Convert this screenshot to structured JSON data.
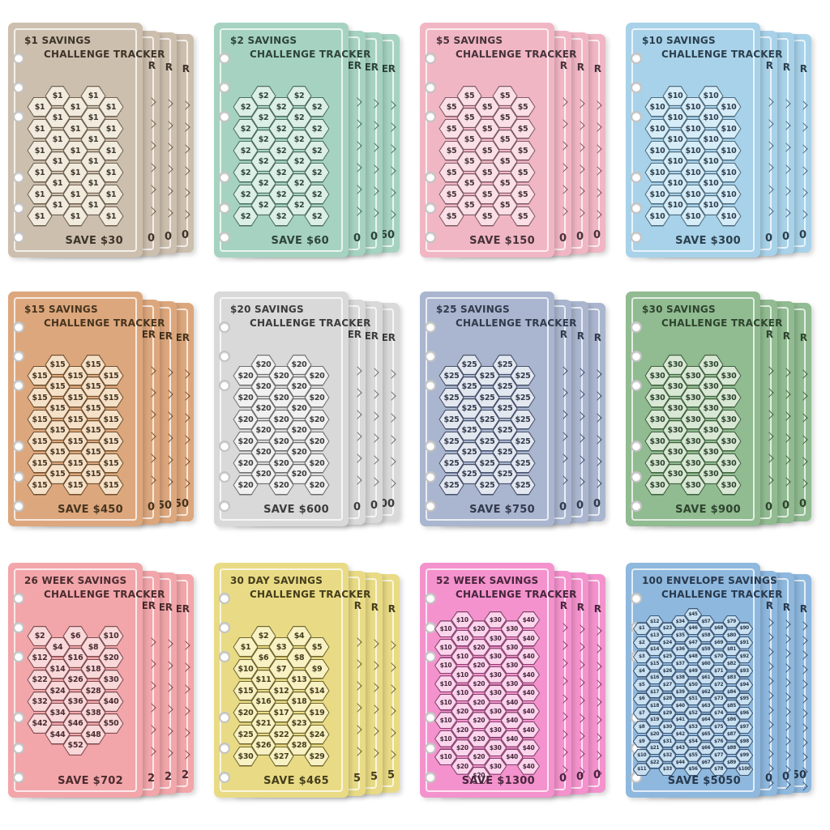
{
  "page": {
    "background": "#ffffff"
  },
  "cards": [
    {
      "title_line1": "$1 SAVINGS",
      "title_line2": "CHALLENGE TRACKER",
      "save_label": "SAVE $30",
      "colors": {
        "bg": "#cdbfae",
        "hex_fill": "#f1ebde",
        "hex_outline": "#6e6150",
        "text": "#3e352a"
      },
      "hex_size": "standard",
      "shifts": [
        1,
        0,
        1,
        0,
        1
      ],
      "columns": [
        [
          "$1",
          "$1",
          "$1",
          "$1",
          "$1",
          "$1"
        ],
        [
          "$1",
          "$1",
          "$1",
          "$1",
          "$1",
          "$1"
        ],
        [
          "$1",
          "$1",
          "$1",
          "$1",
          "$1",
          "$1"
        ],
        [
          "$1",
          "$1",
          "$1",
          "$1",
          "$1",
          "$1"
        ],
        [
          "$1",
          "$1",
          "$1",
          "$1",
          "$1",
          "$1"
        ]
      ],
      "edge_top_fragments": [
        "R",
        "R",
        "R"
      ],
      "edge_bottom_fragments": [
        "0",
        "0",
        "0"
      ]
    },
    {
      "title_line1": "$2 SAVINGS",
      "title_line2": "CHALLENGE TRACKER",
      "save_label": "SAVE $60",
      "colors": {
        "bg": "#a6d3c1",
        "hex_fill": "#dcefe6",
        "hex_outline": "#4c6e61",
        "text": "#2f443c"
      },
      "hex_size": "standard",
      "shifts": [
        1,
        0,
        1,
        0,
        1
      ],
      "columns": [
        [
          "$2",
          "$2",
          "$2",
          "$2",
          "$2",
          "$2"
        ],
        [
          "$2",
          "$2",
          "$2",
          "$2",
          "$2",
          "$2"
        ],
        [
          "$2",
          "$2",
          "$2",
          "$2",
          "$2",
          "$2"
        ],
        [
          "$2",
          "$2",
          "$2",
          "$2",
          "$2",
          "$2"
        ],
        [
          "$2",
          "$2",
          "$2",
          "$2",
          "$2",
          "$2"
        ]
      ],
      "edge_top_fragments": [
        "ER",
        "ER",
        "ER"
      ],
      "edge_bottom_fragments": [
        "0",
        "0",
        "60"
      ]
    },
    {
      "title_line1": "$5 SAVINGS",
      "title_line2": "CHALLENGE TRACKER",
      "save_label": "SAVE $150",
      "colors": {
        "bg": "#f1b6c4",
        "hex_fill": "#fadfe6",
        "hex_outline": "#7e5a64",
        "text": "#46333a"
      },
      "hex_size": "standard",
      "shifts": [
        1,
        0,
        1,
        0,
        1
      ],
      "columns": [
        [
          "$5",
          "$5",
          "$5",
          "$5",
          "$5",
          "$5"
        ],
        [
          "$5",
          "$5",
          "$5",
          "$5",
          "$5",
          "$5"
        ],
        [
          "$5",
          "$5",
          "$5",
          "$5",
          "$5",
          "$5"
        ],
        [
          "$5",
          "$5",
          "$5",
          "$5",
          "$5",
          "$5"
        ],
        [
          "$5",
          "$5",
          "$5",
          "$5",
          "$5",
          "$5"
        ]
      ],
      "edge_top_fragments": [
        "R",
        "R",
        "R"
      ],
      "edge_bottom_fragments": [
        "0",
        "0",
        "0"
      ]
    },
    {
      "title_line1": "$10 SAVINGS",
      "title_line2": "CHALLENGE TRACKER",
      "save_label": "SAVE $300",
      "colors": {
        "bg": "#a8d2e9",
        "hex_fill": "#d6ecf7",
        "hex_outline": "#4d6b7e",
        "text": "#2c3f4d"
      },
      "hex_size": "standard",
      "shifts": [
        1,
        0,
        1,
        0,
        1
      ],
      "columns": [
        [
          "$10",
          "$10",
          "$10",
          "$10",
          "$10",
          "$10"
        ],
        [
          "$10",
          "$10",
          "$10",
          "$10",
          "$10",
          "$10"
        ],
        [
          "$10",
          "$10",
          "$10",
          "$10",
          "$10",
          "$10"
        ],
        [
          "$10",
          "$10",
          "$10",
          "$10",
          "$10",
          "$10"
        ],
        [
          "$10",
          "$10",
          "$10",
          "$10",
          "$10",
          "$10"
        ]
      ],
      "edge_top_fragments": [
        "R",
        "R",
        "R"
      ],
      "edge_bottom_fragments": [
        "0",
        "0",
        "0"
      ]
    },
    {
      "title_line1": "$15 SAVINGS",
      "title_line2": "CHALLENGE TRACKER",
      "save_label": "SAVE $450",
      "colors": {
        "bg": "#dda77d",
        "hex_fill": "#f5e0c8",
        "hex_outline": "#70502f",
        "text": "#47351f"
      },
      "hex_size": "standard",
      "shifts": [
        1,
        0,
        1,
        0,
        1
      ],
      "columns": [
        [
          "$15",
          "$15",
          "$15",
          "$15",
          "$15",
          "$15"
        ],
        [
          "$15",
          "$15",
          "$15",
          "$15",
          "$15",
          "$15"
        ],
        [
          "$15",
          "$15",
          "$15",
          "$15",
          "$15",
          "$15"
        ],
        [
          "$15",
          "$15",
          "$15",
          "$15",
          "$15",
          "$15"
        ],
        [
          "$15",
          "$15",
          "$15",
          "$15",
          "$15",
          "$15"
        ]
      ],
      "edge_top_fragments": [
        "ER",
        "ER",
        "ER"
      ],
      "edge_bottom_fragments": [
        "0",
        "50",
        "50"
      ]
    },
    {
      "title_line1": "$20 SAVINGS",
      "title_line2": "CHALLENGE TRACKER",
      "save_label": "SAVE $600",
      "colors": {
        "bg": "#d9d9d9",
        "hex_fill": "#f1f1f1",
        "hex_outline": "#6f6f6f",
        "text": "#3c3c3c"
      },
      "hex_size": "standard",
      "shifts": [
        1,
        0,
        1,
        0,
        1
      ],
      "columns": [
        [
          "$20",
          "$20",
          "$20",
          "$20",
          "$20",
          "$20"
        ],
        [
          "$20",
          "$20",
          "$20",
          "$20",
          "$20",
          "$20"
        ],
        [
          "$20",
          "$20",
          "$20",
          "$20",
          "$20",
          "$20"
        ],
        [
          "$20",
          "$20",
          "$20",
          "$20",
          "$20",
          "$20"
        ],
        [
          "$20",
          "$20",
          "$20",
          "$20",
          "$20",
          "$20"
        ]
      ],
      "edge_top_fragments": [
        "ER",
        "ER",
        "ER"
      ],
      "edge_bottom_fragments": [
        "0",
        "0",
        "00"
      ]
    },
    {
      "title_line1": "$25 SAVINGS",
      "title_line2": "CHALLENGE TRACKER",
      "save_label": "SAVE $750",
      "colors": {
        "bg": "#aab6cf",
        "hex_fill": "#e3e7ef",
        "hex_outline": "#46506a",
        "text": "#323a4c"
      },
      "hex_size": "standard",
      "shifts": [
        1,
        0,
        1,
        0,
        1
      ],
      "columns": [
        [
          "$25",
          "$25",
          "$25",
          "$25",
          "$25",
          "$25"
        ],
        [
          "$25",
          "$25",
          "$25",
          "$25",
          "$25",
          "$25"
        ],
        [
          "$25",
          "$25",
          "$25",
          "$25",
          "$25",
          "$25"
        ],
        [
          "$25",
          "$25",
          "$25",
          "$25",
          "$25",
          "$25"
        ],
        [
          "$25",
          "$25",
          "$25",
          "$25",
          "$25",
          "$25"
        ]
      ],
      "edge_top_fragments": [
        "R",
        "R",
        "R"
      ],
      "edge_bottom_fragments": [
        "0",
        "0",
        "0"
      ]
    },
    {
      "title_line1": "$30 SAVINGS",
      "title_line2": "CHALLENGE TRACKER",
      "save_label": "SAVE $900",
      "colors": {
        "bg": "#91bb91",
        "hex_fill": "#d8e8d4",
        "hex_outline": "#41603f",
        "text": "#2e442e"
      },
      "hex_size": "standard",
      "shifts": [
        1,
        0,
        1,
        0,
        1
      ],
      "columns": [
        [
          "$30",
          "$30",
          "$30",
          "$30",
          "$30",
          "$30"
        ],
        [
          "$30",
          "$30",
          "$30",
          "$30",
          "$30",
          "$30"
        ],
        [
          "$30",
          "$30",
          "$30",
          "$30",
          "$30",
          "$30"
        ],
        [
          "$30",
          "$30",
          "$30",
          "$30",
          "$30",
          "$30"
        ],
        [
          "$30",
          "$30",
          "$30",
          "$30",
          "$30",
          "$30"
        ]
      ],
      "edge_top_fragments": [
        "R",
        "R",
        "R"
      ],
      "edge_bottom_fragments": [
        "0",
        "0",
        "0"
      ]
    },
    {
      "title_line1": "26 WEEK SAVINGS",
      "title_line2": "CHALLENGE TRACKER",
      "save_label": "SAVE $702",
      "colors": {
        "bg": "#f2a6aa",
        "hex_fill": "#f9d8da",
        "hex_outline": "#7e4c50",
        "text": "#4b2c2f"
      },
      "hex_size": "standard",
      "shifts": [
        0,
        1,
        0,
        1,
        0
      ],
      "columns": [
        [
          "$2",
          "$12",
          "$22",
          "$32",
          "$42"
        ],
        [
          "$4",
          "$14",
          "$24",
          "$34",
          "$44"
        ],
        [
          "$6",
          "$16",
          "$26",
          "$36",
          "$46",
          "$52"
        ],
        [
          "$8",
          "$18",
          "$28",
          "$38",
          "$48"
        ],
        [
          "$10",
          "$20",
          "$30",
          "$40",
          "$50"
        ]
      ],
      "edge_top_fragments": [
        "ER",
        "ER",
        "ER"
      ],
      "edge_bottom_fragments": [
        "2",
        "2",
        "2"
      ]
    },
    {
      "title_line1": "30 DAY SAVINGS",
      "title_line2": "CHALLENGE TRACKER",
      "save_label": "SAVE $465",
      "colors": {
        "bg": "#e9db85",
        "hex_fill": "#f8f1c3",
        "hex_outline": "#6f6630",
        "text": "#453e1d"
      },
      "hex_size": "standard",
      "shifts": [
        1,
        0,
        1,
        0,
        1
      ],
      "columns": [
        [
          "$1",
          "$10",
          "$15",
          "$20",
          "$25",
          "$30"
        ],
        [
          "$2",
          "$6",
          "$11",
          "$16",
          "$21",
          "$26"
        ],
        [
          "$3",
          "$7",
          "$12",
          "$17",
          "$22",
          "$27"
        ],
        [
          "$4",
          "$8",
          "$13",
          "$18",
          "$23",
          "$28"
        ],
        [
          "$5",
          "$9",
          "$14",
          "$19",
          "$24",
          "$29"
        ]
      ],
      "edge_top_fragments": [
        "R",
        "R",
        "R"
      ],
      "edge_bottom_fragments": [
        "5",
        "5",
        "5"
      ]
    },
    {
      "title_line1": "52 WEEK SAVINGS",
      "title_line2": "CHALLENGE TRACKER",
      "save_label": "SAVE $1300",
      "colors": {
        "bg": "#f492cd",
        "hex_fill": "#fbd5ec",
        "hex_outline": "#833f6b",
        "text": "#46263c"
      },
      "hex_size": "small",
      "shifts": [
        1,
        0,
        1,
        0,
        1,
        0
      ],
      "columns": [
        [
          "$10",
          "$10",
          "$10",
          "$10",
          "$10",
          "$10",
          "$10",
          "$10"
        ],
        [
          "$10",
          "$10",
          "$10",
          "$10",
          "$10",
          "$20",
          "$20",
          "$20",
          "$20"
        ],
        [
          "$20",
          "$20",
          "$20",
          "$20",
          "$20",
          "$20",
          "$20",
          "$20",
          "$20"
        ],
        [
          "$30",
          "$30",
          "$30",
          "$30",
          "$30",
          "$30",
          "$30",
          "$30",
          "$30"
        ],
        [
          "$30",
          "$30",
          "$30",
          "$30",
          "$40",
          "$40",
          "$40",
          "$40"
        ],
        [
          "$40",
          "$40",
          "$40",
          "$40",
          "$40",
          "$40",
          "$40",
          "$40",
          "$40"
        ]
      ],
      "edge_top_fragments": [
        "R",
        "R",
        "R"
      ],
      "edge_bottom_fragments": [
        "0",
        "0",
        "0"
      ]
    },
    {
      "title_line1": "100 ENVELOPE SAVINGS",
      "title_line2": "CHALLENGE TRACKER",
      "save_label": "SAVE $5050",
      "colors": {
        "bg": "#8eb8de",
        "hex_fill": "#c9e0f1",
        "hex_outline": "#3d5674",
        "text": "#29394d"
      },
      "hex_size": "tiny",
      "shifts": [
        2,
        1,
        2,
        1,
        0,
        1,
        2,
        1,
        2
      ],
      "columns": [
        [
          "$1",
          "$2",
          "$3",
          "$4",
          "$5",
          "$6",
          "$7",
          "$8",
          "$9",
          "$10",
          "$11"
        ],
        [
          "$12",
          "$13",
          "$14",
          "$15",
          "$16",
          "$17",
          "$18",
          "$19",
          "$20",
          "$21",
          "$22"
        ],
        [
          "$23",
          "$24",
          "$25",
          "$26",
          "$27",
          "$28",
          "$29",
          "$30",
          "$31",
          "$32",
          "$33"
        ],
        [
          "$34",
          "$35",
          "$36",
          "$37",
          "$38",
          "$39",
          "$40",
          "$41",
          "$42",
          "$43",
          "$44"
        ],
        [
          "$45",
          "$46",
          "$47",
          "$48",
          "$49",
          "$50",
          "$51",
          "$52",
          "$53",
          "$54",
          "$55",
          "$56"
        ],
        [
          "$57",
          "$58",
          "$59",
          "$60",
          "$61",
          "$62",
          "$63",
          "$64",
          "$65",
          "$66",
          "$67"
        ],
        [
          "$68",
          "$69",
          "$70",
          "$71",
          "$72",
          "$73",
          "$74",
          "$75",
          "$76",
          "$77",
          "$78"
        ],
        [
          "$79",
          "$80",
          "$81",
          "$82",
          "$83",
          "$84",
          "$85",
          "$86",
          "$87",
          "$88",
          "$89"
        ],
        [
          "$90",
          "$91",
          "$92",
          "$93",
          "$94",
          "$95",
          "$96",
          "$97",
          "$98",
          "$99",
          "$100"
        ]
      ],
      "edge_top_fragments": [
        "R",
        "R",
        "R"
      ],
      "edge_bottom_fragments": [
        "0",
        "0",
        "50"
      ]
    }
  ]
}
